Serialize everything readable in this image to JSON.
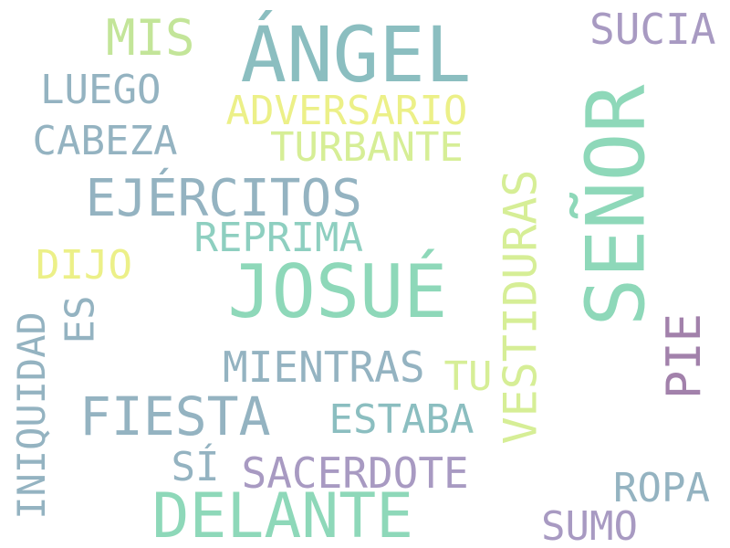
{
  "word_cloud": {
    "words": [
      {
        "key": "senor",
        "text": "SEÑOR",
        "color": "#8ed8b9"
      },
      {
        "key": "angel",
        "text": "ÁNGEL",
        "color": "#8bbec0"
      },
      {
        "key": "josue",
        "text": "JOSUÉ",
        "color": "#8ed8b9"
      },
      {
        "key": "delante",
        "text": "DELANTE",
        "color": "#8ed8b9"
      },
      {
        "key": "ejercitos",
        "text": "EJÉRCITOS",
        "color": "#94b3c1"
      },
      {
        "key": "fiesta",
        "text": "FIESTA",
        "color": "#94b3c1"
      },
      {
        "key": "vestiduras",
        "text": "VESTIDURAS",
        "color": "#d6ee96"
      },
      {
        "key": "pie",
        "text": "PIE",
        "color": "#a281ab"
      },
      {
        "key": "mis",
        "text": "MIS",
        "color": "#c3e599"
      },
      {
        "key": "sucia",
        "text": "SUCIA",
        "color": "#a89ac2"
      },
      {
        "key": "luego",
        "text": "LUEGO",
        "color": "#94b3c1"
      },
      {
        "key": "adversario",
        "text": "ADVERSARIO",
        "color": "#ecf088"
      },
      {
        "key": "cabeza",
        "text": "CABEZA",
        "color": "#94b3c1"
      },
      {
        "key": "turbante",
        "text": "TURBANTE",
        "color": "#d6ee96"
      },
      {
        "key": "reprima",
        "text": "REPRIMA",
        "color": "#8ecfc0"
      },
      {
        "key": "dijo",
        "text": "DIJO",
        "color": "#ecf088"
      },
      {
        "key": "es",
        "text": "ES",
        "color": "#94b3c1"
      },
      {
        "key": "iniquidad",
        "text": "INIQUIDAD",
        "color": "#94b3c1"
      },
      {
        "key": "mientras",
        "text": "MIENTRAS",
        "color": "#94b3c1"
      },
      {
        "key": "tu",
        "text": "TU",
        "color": "#d6ee96"
      },
      {
        "key": "estaba",
        "text": "ESTABA",
        "color": "#8bbec0"
      },
      {
        "key": "si",
        "text": "SÍ",
        "color": "#94b3c1"
      },
      {
        "key": "sacerdote",
        "text": "SACERDOTE",
        "color": "#a89ac2"
      },
      {
        "key": "ropa",
        "text": "ROPA",
        "color": "#94b3c1"
      },
      {
        "key": "sumo",
        "text": "SUMO",
        "color": "#a89ac2"
      }
    ]
  }
}
